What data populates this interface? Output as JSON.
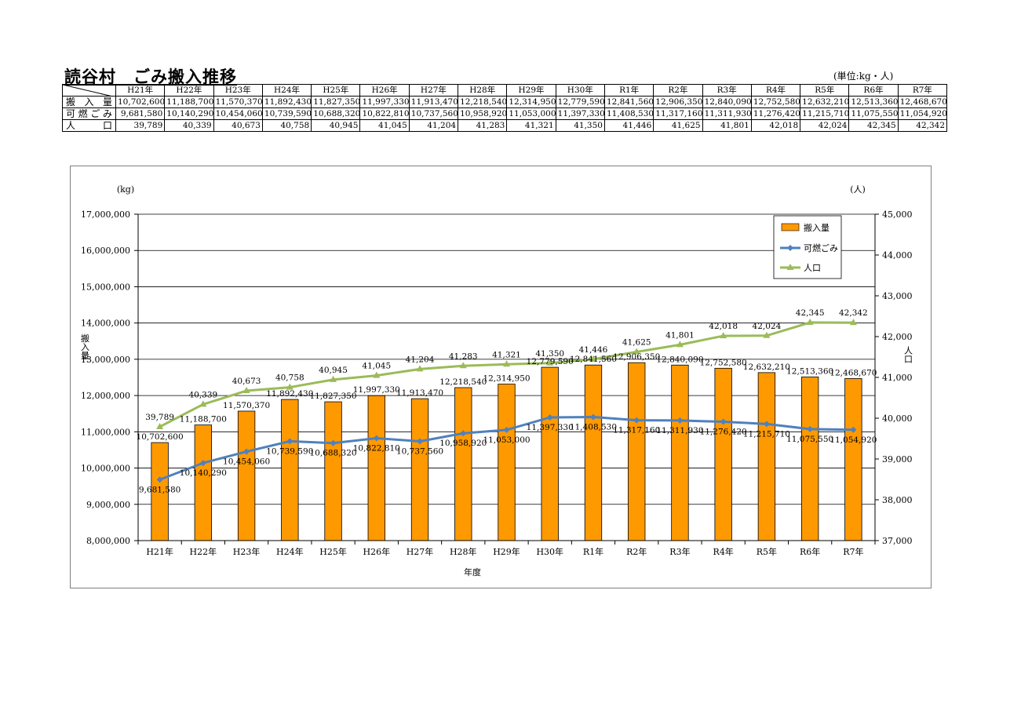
{
  "page": {
    "title": "読谷村　ごみ搬入推移",
    "unit_note": "(単位:kg・人)"
  },
  "table": {
    "columns": [
      "H21年",
      "H22年",
      "H23年",
      "H24年",
      "H25年",
      "H26年",
      "H27年",
      "H28年",
      "H29年",
      "H30年",
      "R1年",
      "R2年",
      "R3年",
      "R4年",
      "R5年",
      "R6年",
      "R7年"
    ],
    "rows": [
      {
        "label": "搬入量",
        "values": [
          "10,702,600",
          "11,188,700",
          "11,570,370",
          "11,892,430",
          "11,827,350",
          "11,997,330",
          "11,913,470",
          "12,218,540",
          "12,314,950",
          "12,779,590",
          "12,841,560",
          "12,906,350",
          "12,840,090",
          "12,752,580",
          "12,632,210",
          "12,513,360",
          "12,468,670"
        ]
      },
      {
        "label": "可燃ごみ",
        "values": [
          "9,681,580",
          "10,140,290",
          "10,454,060",
          "10,739,590",
          "10,688,320",
          "10,822,810",
          "10,737,560",
          "10,958,920",
          "11,053,000",
          "11,397,330",
          "11,408,530",
          "11,317,160",
          "11,311,930",
          "11,276,420",
          "11,215,710",
          "11,075,550",
          "11,054,920"
        ]
      },
      {
        "label": "人口",
        "values": [
          "39,789",
          "40,339",
          "40,673",
          "40,758",
          "40,945",
          "41,045",
          "41,204",
          "41,283",
          "41,321",
          "41,350",
          "41,446",
          "41,625",
          "41,801",
          "42,018",
          "42,024",
          "42,345",
          "42,342"
        ]
      }
    ]
  },
  "chart_data": {
    "type": "bar",
    "categories": [
      "H21年",
      "H22年",
      "H23年",
      "H24年",
      "H25年",
      "H26年",
      "H27年",
      "H28年",
      "H29年",
      "H30年",
      "R1年",
      "R2年",
      "R3年",
      "R4年",
      "R5年",
      "R6年",
      "R7年"
    ],
    "series": [
      {
        "name": "搬入量",
        "type": "bar",
        "axis": "left",
        "color": "#ff9900",
        "values": [
          10702600,
          11188700,
          11570370,
          11892430,
          11827350,
          11997330,
          11913470,
          12218540,
          12314950,
          12779590,
          12841560,
          12906350,
          12840090,
          12752580,
          12632210,
          12513360,
          12468670
        ],
        "labels": [
          "10,702,600",
          "11,188,700",
          "11,570,370",
          "11,892,430",
          "11,827,350",
          "11,997,330",
          "11,913,470",
          "12,218,540",
          "12,314,950",
          "12,779,590",
          "12,841,560",
          "12,906,350",
          "12,840,090",
          "12,752,580",
          "12,632,210",
          "12,513,360",
          "12,468,670"
        ]
      },
      {
        "name": "可燃ごみ",
        "type": "line",
        "marker": "diamond",
        "axis": "left",
        "color": "#4f81bd",
        "values": [
          9681580,
          10140290,
          10454060,
          10739590,
          10688320,
          10822810,
          10737560,
          10958920,
          11053000,
          11397330,
          11408530,
          11317160,
          11311930,
          11276420,
          11215710,
          11075550,
          11054920
        ],
        "labels": [
          "9,681,580",
          "10,140,290",
          "10,454,060",
          "10,739,590",
          "10,688,320",
          "10,822,810",
          "10,737,560",
          "10,958,920",
          "11,053,000",
          "11,397,330",
          "11,408,530",
          "11,317,160",
          "11,311,930",
          "11,276,420",
          "11,215,710",
          "11,075,550",
          "11,054,920"
        ]
      },
      {
        "name": "人口",
        "type": "line",
        "marker": "triangle",
        "axis": "right",
        "color": "#9bbb59",
        "values": [
          39789,
          40339,
          40673,
          40758,
          40945,
          41045,
          41204,
          41283,
          41321,
          41350,
          41446,
          41625,
          41801,
          42018,
          42024,
          42345,
          42342
        ],
        "labels": [
          "39,789",
          "40,339",
          "40,673",
          "40,758",
          "40,945",
          "41,045",
          "41,204",
          "41,283",
          "41,321",
          "41,350",
          "41,446",
          "41,625",
          "41,801",
          "42,018",
          "42,024",
          "42,345",
          "42,342"
        ]
      }
    ],
    "xlabel": "年度",
    "ylabel": "搬入量",
    "ylabel_right": "人口",
    "y_unit": "(kg)",
    "y2_unit": "(人)",
    "ylim": [
      8000000,
      17000000
    ],
    "y2lim": [
      37000,
      45000
    ],
    "yticks": [
      "8,000,000",
      "9,000,000",
      "10,000,000",
      "11,000,000",
      "12,000,000",
      "13,000,000",
      "14,000,000",
      "15,000,000",
      "16,000,000",
      "17,000,000"
    ],
    "y2ticks": [
      "37,000",
      "38,000",
      "39,000",
      "40,000",
      "41,000",
      "42,000",
      "43,000",
      "44,000",
      "45,000"
    ],
    "grid": true,
    "legend_position": "top-right"
  }
}
